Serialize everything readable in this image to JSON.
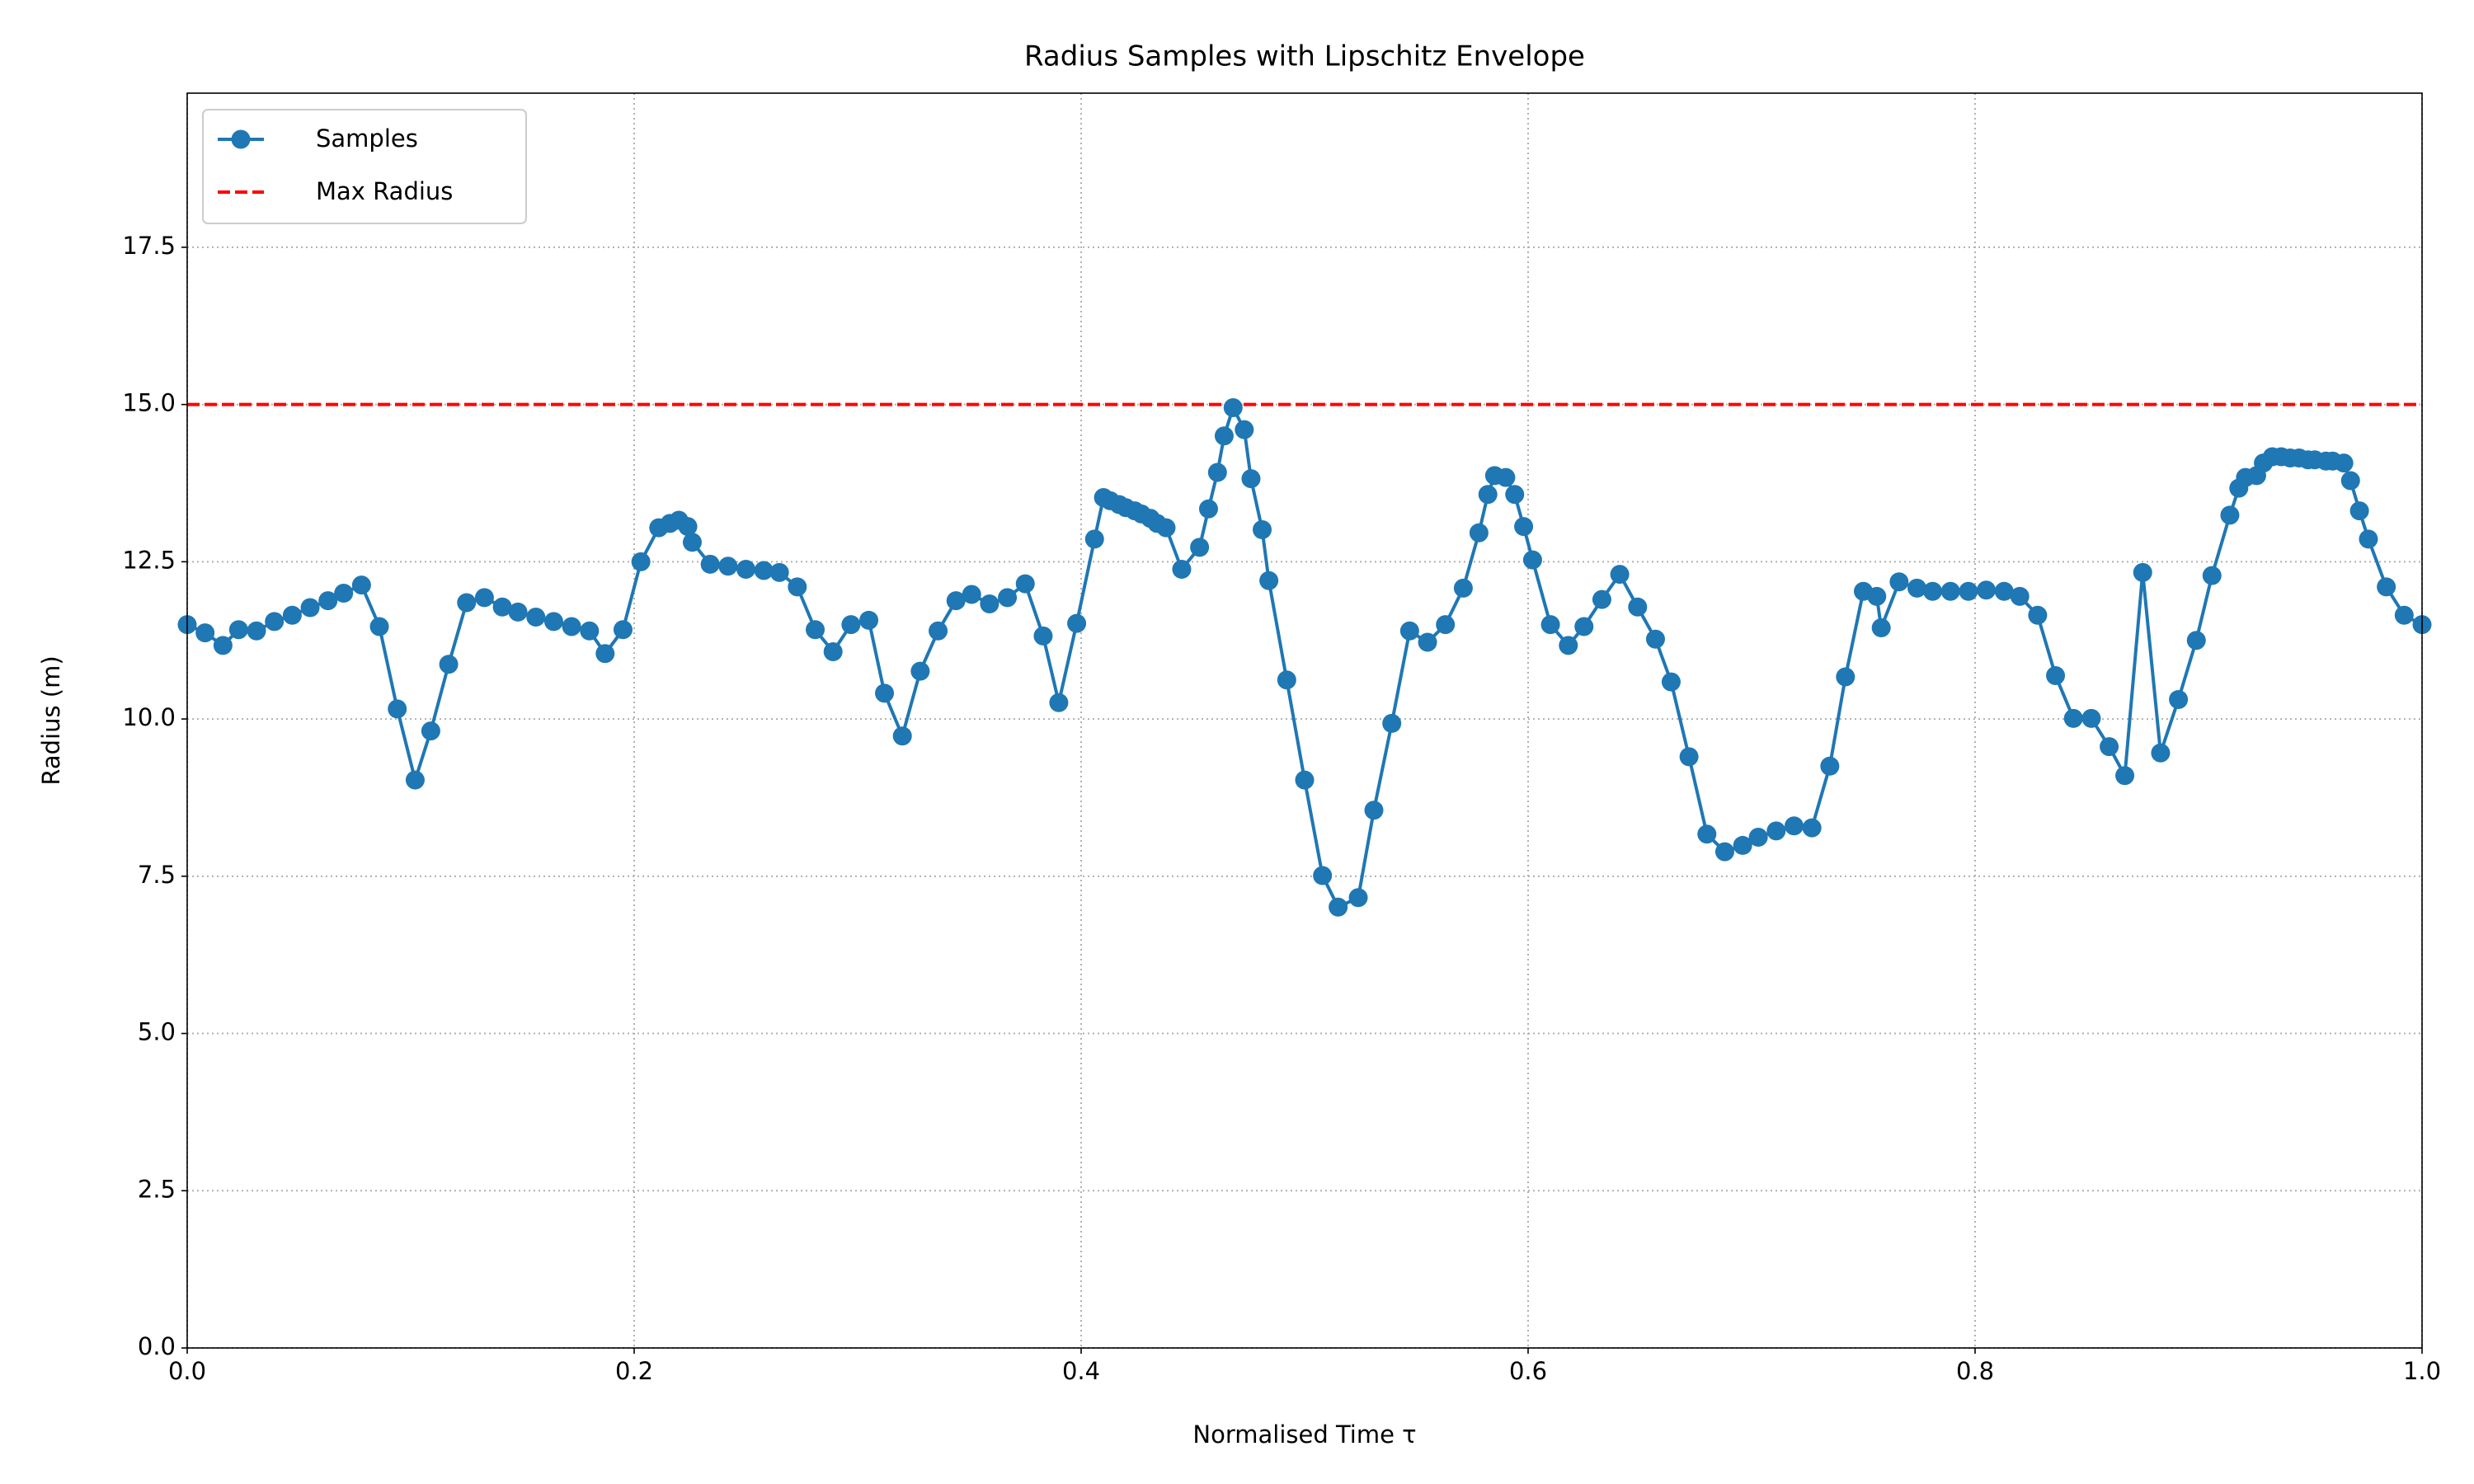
{
  "chart_data": {
    "type": "line",
    "title": "Radius Samples with Lipschitz Envelope",
    "xlabel": "Normalised Time τ",
    "ylabel": "Radius (m)",
    "x": [
      0,
      0.008,
      0.016,
      0.023,
      0.031,
      0.039,
      0.047,
      0.055,
      0.063,
      0.07,
      0.078,
      0.086,
      0.094,
      0.102,
      0.109,
      0.117,
      0.125,
      0.133,
      0.141,
      0.148,
      0.156,
      0.164,
      0.172,
      0.18,
      0.187,
      0.195,
      0.203,
      0.211,
      0.216,
      0.22,
      0.224,
      0.226,
      0.234,
      0.242,
      0.25,
      0.258,
      0.265,
      0.273,
      0.281,
      0.289,
      0.297,
      0.305,
      0.312,
      0.32,
      0.328,
      0.336,
      0.344,
      0.351,
      0.359,
      0.367,
      0.375,
      0.383,
      0.39,
      0.398,
      0.406,
      0.41,
      0.413,
      0.417,
      0.42,
      0.424,
      0.427,
      0.431,
      0.434,
      0.438,
      0.445,
      0.453,
      0.457,
      0.461,
      0.464,
      0.468,
      0.473,
      0.476,
      0.481,
      0.484,
      0.492,
      0.5,
      0.508,
      0.515,
      0.524,
      0.531,
      0.539,
      0.547,
      0.555,
      0.563,
      0.571,
      0.578,
      0.582,
      0.585,
      0.59,
      0.594,
      0.598,
      0.602,
      0.61,
      0.618,
      0.625,
      0.633,
      0.641,
      0.649,
      0.657,
      0.664,
      0.672,
      0.68,
      0.688,
      0.696,
      0.703,
      0.711,
      0.719,
      0.727,
      0.735,
      0.742,
      0.75,
      0.756,
      0.758,
      0.766,
      0.774,
      0.781,
      0.789,
      0.797,
      0.805,
      0.813,
      0.82,
      0.828,
      0.836,
      0.844,
      0.852,
      0.86,
      0.867,
      0.875,
      0.883,
      0.891,
      0.899,
      0.906,
      0.914,
      0.918,
      0.921,
      0.926,
      0.929,
      0.933,
      0.937,
      0.941,
      0.945,
      0.949,
      0.952,
      0.957,
      0.96,
      0.965,
      0.968,
      0.972,
      0.976,
      0.984,
      0.992,
      1.0
    ],
    "series": [
      {
        "name": "Samples",
        "color": "#1f77b4",
        "values": [
          11.5,
          11.37,
          11.17,
          11.42,
          11.4,
          11.55,
          11.65,
          11.77,
          11.88,
          12.0,
          12.13,
          11.47,
          10.16,
          9.03,
          9.81,
          10.87,
          11.85,
          11.93,
          11.78,
          11.7,
          11.62,
          11.55,
          11.47,
          11.4,
          11.04,
          11.42,
          12.5,
          13.04,
          13.11,
          13.16,
          13.06,
          12.81,
          12.46,
          12.43,
          12.38,
          12.36,
          12.33,
          12.1,
          11.42,
          11.07,
          11.5,
          11.57,
          10.41,
          9.73,
          10.76,
          11.4,
          11.88,
          11.98,
          11.83,
          11.93,
          12.15,
          11.32,
          10.26,
          11.52,
          12.86,
          13.52,
          13.47,
          13.41,
          13.36,
          13.31,
          13.26,
          13.19,
          13.11,
          13.04,
          12.38,
          12.73,
          13.34,
          13.92,
          14.5,
          14.95,
          14.6,
          13.82,
          13.01,
          12.2,
          10.62,
          9.03,
          7.51,
          7.01,
          7.16,
          8.55,
          9.93,
          11.4,
          11.22,
          11.5,
          12.08,
          12.96,
          13.57,
          13.87,
          13.84,
          13.57,
          13.06,
          12.53,
          11.5,
          11.17,
          11.47,
          11.9,
          12.3,
          11.78,
          11.27,
          10.59,
          9.4,
          8.17,
          7.89,
          7.99,
          8.12,
          8.22,
          8.3,
          8.27,
          9.25,
          10.67,
          12.03,
          11.95,
          11.45,
          12.18,
          12.08,
          12.03,
          12.03,
          12.03,
          12.05,
          12.03,
          11.95,
          11.65,
          10.69,
          10.01,
          10.01,
          9.56,
          9.1,
          12.33,
          9.46,
          10.31,
          11.25,
          12.28,
          13.24,
          13.67,
          13.84,
          13.87,
          14.07,
          14.17,
          14.17,
          14.15,
          14.15,
          14.12,
          14.12,
          14.1,
          14.1,
          14.07,
          13.79,
          13.31,
          12.86,
          12.1,
          11.65,
          11.5
        ]
      }
    ],
    "reference_line": {
      "name": "Max Radius",
      "value": 15,
      "color": "#ff0000",
      "style": "dashed"
    },
    "xlim": [
      0,
      1
    ],
    "ylim": [
      0,
      19.95
    ],
    "xticks": [
      {
        "value": 0,
        "label": "0.0"
      },
      0.2,
      0.4,
      0.6,
      0.8,
      {
        "value": 1,
        "label": "1.0"
      }
    ],
    "yticks": [
      {
        "value": 0,
        "label": "0.0"
      },
      2.5,
      {
        "value": 5,
        "label": "5.0"
      },
      7.5,
      {
        "value": 10,
        "label": "10.0"
      },
      12.5,
      {
        "value": 15,
        "label": "15.0"
      },
      17.5
    ],
    "grid": true,
    "legend": "upper left"
  }
}
